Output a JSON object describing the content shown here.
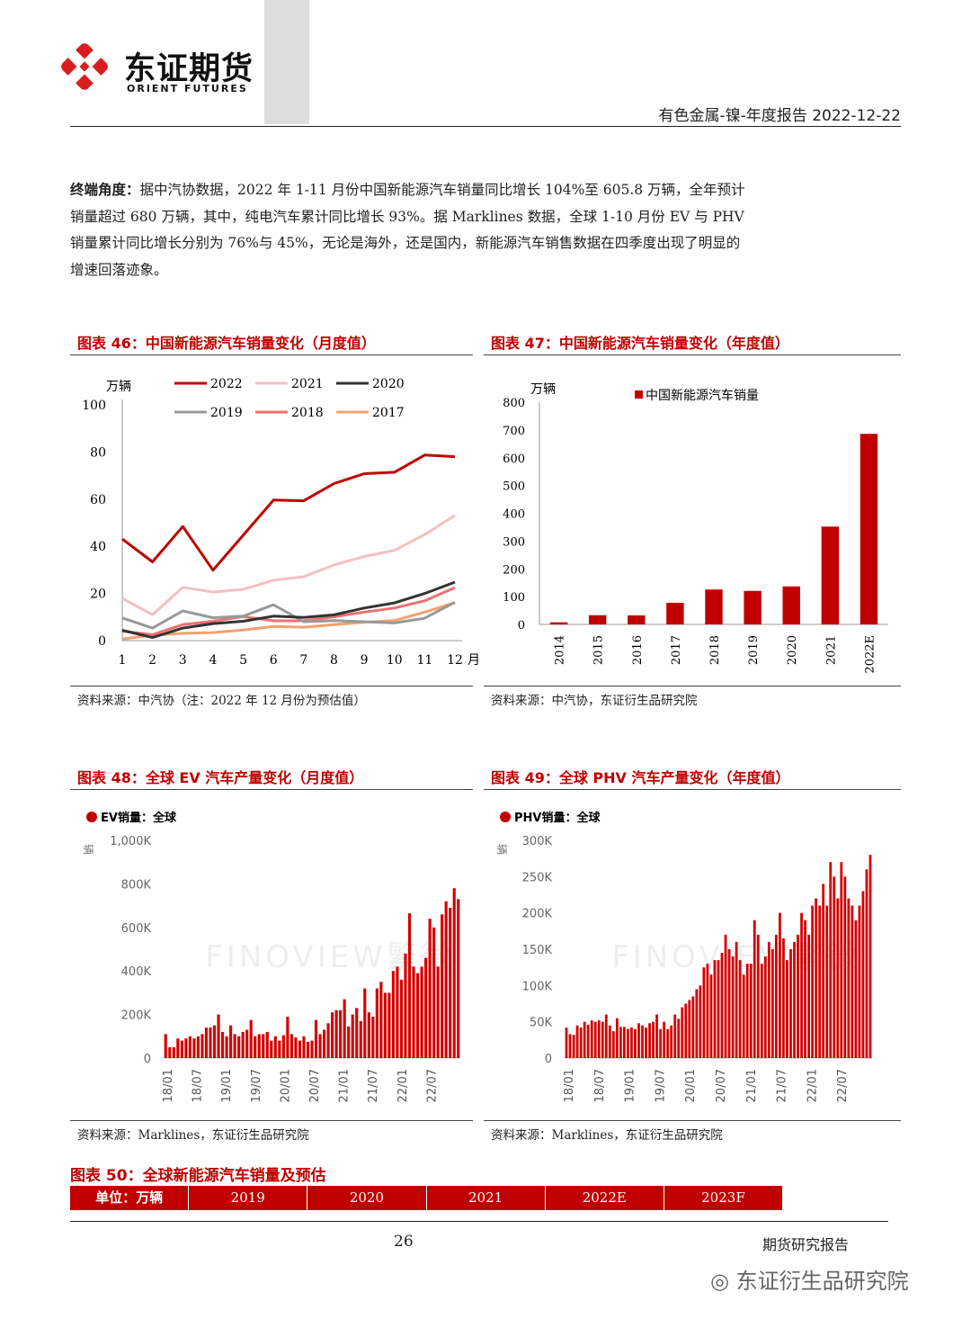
{
  "header": {
    "logo_cn": "东证期货",
    "logo_en": "ORIENT FUTURES",
    "report_title": "有色金属-镍-年度报告 2022-12-22"
  },
  "body": {
    "lead": "终端角度：",
    "text": "据中汽协数据，2022 年 1-11 月份中国新能源汽车销量同比增长 104%至 605.8 万辆，全年预计销量超过 680 万辆，其中，纯电汽车累计同比增长 93%。据 Marklines 数据，全球 1-10 月份 EV 与 PHV 销量累计同比增长分别为 76%与 45%，无论是海外，还是国内，新能源汽车销售数据在四季度出现了明显的增速回落迹象。"
  },
  "fig46": {
    "title": "图表 46：中国新能源汽车销量变化（月度值）",
    "source": "资料来源：中汽协（注：2022 年 12 月份为预估值）"
  },
  "fig47": {
    "title": "图表 47：中国新能源汽车销量变化（年度值）",
    "source": "资料来源：中汽协，东证衍生品研究院"
  },
  "fig48": {
    "title": "图表 48：全球 EV 汽车产量变化（月度值）",
    "source": "资料来源：Marklines，东证衍生品研究院"
  },
  "fig49": {
    "title": "图表 49：全球 PHV 汽车产量变化（年度值）",
    "source": "资料来源：Marklines，东证衍生品研究院"
  },
  "fig50": {
    "title": "图表 50：全球新能源汽车销量及预估",
    "headers": [
      "单位：万辆",
      "2019",
      "2020",
      "2021",
      "2022E",
      "2023F"
    ]
  },
  "footer": {
    "page": "26",
    "label": "期货研究报告",
    "wechat": "东证衍生品研究院"
  },
  "colors": {
    "accent": "#c00000",
    "gridline": "#ddd"
  },
  "chart_data": [
    {
      "type": "line",
      "ylabel": "万辆",
      "xlabel_suffix": "月",
      "ylim": [
        0,
        100
      ],
      "yticks": [
        0,
        20,
        40,
        60,
        80,
        100
      ],
      "x": [
        1,
        2,
        3,
        4,
        5,
        6,
        7,
        8,
        9,
        10,
        11,
        12
      ],
      "series": [
        {
          "name": "2022",
          "color": "#c00000",
          "values": [
            43.1,
            33.4,
            48.4,
            29.9,
            44.7,
            59.6,
            59.3,
            66.6,
            70.8,
            71.4,
            78.7,
            78.0
          ]
        },
        {
          "name": "2021",
          "color": "#f4c0c0",
          "values": [
            17.9,
            11.0,
            22.6,
            20.6,
            21.7,
            25.6,
            27.1,
            32.1,
            35.7,
            38.3,
            45.0,
            53.1
          ]
        },
        {
          "name": "2020",
          "color": "#333333",
          "values": [
            4.4,
            1.3,
            5.3,
            7.2,
            8.2,
            10.4,
            9.8,
            10.9,
            13.8,
            16.0,
            20.0,
            24.8
          ]
        },
        {
          "name": "2019",
          "color": "#999999",
          "values": [
            9.6,
            5.3,
            12.6,
            9.7,
            10.4,
            15.2,
            8.0,
            8.5,
            8.0,
            7.5,
            9.5,
            16.3
          ]
        },
        {
          "name": "2018",
          "color": "#f07070",
          "values": [
            4.0,
            2.5,
            6.8,
            8.2,
            10.2,
            8.4,
            8.4,
            10.1,
            12.1,
            13.8,
            16.9,
            22.5
          ]
        },
        {
          "name": "2017",
          "color": "#f4a070",
          "values": [
            0.7,
            2.3,
            3.1,
            3.4,
            4.5,
            6.0,
            5.7,
            6.8,
            7.8,
            8.5,
            12.1,
            16.1
          ]
        }
      ]
    },
    {
      "type": "bar",
      "ylabel": "万辆",
      "ylim": [
        0,
        800
      ],
      "yticks": [
        0,
        100,
        200,
        300,
        400,
        500,
        600,
        700,
        800
      ],
      "categories": [
        "2014",
        "2015",
        "2016",
        "2017",
        "2018",
        "2019",
        "2020",
        "2021",
        "2022E"
      ],
      "series": [
        {
          "name": "中国新能源汽车销量",
          "values": [
            7.5,
            33.1,
            32.5,
            77.7,
            125.6,
            120.6,
            136.7,
            352.1,
            686
          ]
        }
      ]
    },
    {
      "type": "bar",
      "legend": "EV销量：全球",
      "ylabel": "辆",
      "watermark": "FINOVIEW繁微",
      "ylim": [
        0,
        1000000
      ],
      "ytick_labels": [
        "0",
        "200K",
        "400K",
        "600K",
        "800K",
        "1,000K"
      ],
      "x_tick_labels": [
        "18/01",
        "18/07",
        "19/01",
        "19/07",
        "20/01",
        "20/07",
        "21/01",
        "21/07",
        "22/01",
        "22/07"
      ],
      "series": [
        {
          "name": "EV销量：全球",
          "values": [
            110000,
            50000,
            50000,
            90000,
            80000,
            90000,
            100000,
            90000,
            100000,
            110000,
            140000,
            140000,
            150000,
            200000,
            120000,
            100000,
            150000,
            110000,
            100000,
            120000,
            130000,
            175000,
            100000,
            110000,
            110000,
            120000,
            80000,
            100000,
            80000,
            105000,
            190000,
            110000,
            95000,
            80000,
            100000,
            75000,
            80000,
            175000,
            110000,
            130000,
            160000,
            210000,
            220000,
            220000,
            270000,
            145000,
            200000,
            230000,
            170000,
            320000,
            210000,
            190000,
            320000,
            350000,
            300000,
            300000,
            400000,
            420000,
            360000,
            480000,
            665000,
            420000,
            390000,
            420000,
            460000,
            640000,
            600000,
            420000,
            660000,
            720000,
            690000,
            780000,
            730000
          ]
        }
      ]
    },
    {
      "type": "bar",
      "legend": "PHV销量：全球",
      "ylabel": "辆",
      "watermark": "FINOVIEW繁微",
      "ylim": [
        0,
        300000
      ],
      "ytick_labels": [
        "0",
        "50K",
        "100K",
        "150K",
        "200K",
        "250K",
        "300K"
      ],
      "x_tick_labels": [
        "18/01",
        "18/07",
        "19/01",
        "19/07",
        "20/01",
        "20/07",
        "21/01",
        "21/07",
        "22/01",
        "22/07"
      ],
      "series": [
        {
          "name": "PHV销量：全球",
          "values": [
            42000,
            33000,
            32000,
            45000,
            42000,
            50000,
            46000,
            52000,
            50000,
            52000,
            50000,
            60000,
            45000,
            37000,
            55000,
            43000,
            43000,
            40000,
            42000,
            40000,
            48000,
            45000,
            42000,
            48000,
            50000,
            60000,
            40000,
            50000,
            40000,
            45000,
            60000,
            54000,
            70000,
            75000,
            80000,
            85000,
            95000,
            100000,
            125000,
            130000,
            115000,
            135000,
            135000,
            145000,
            170000,
            150000,
            140000,
            160000,
            135000,
            115000,
            130000,
            130000,
            190000,
            170000,
            130000,
            140000,
            160000,
            150000,
            170000,
            200000,
            165000,
            135000,
            150000,
            160000,
            170000,
            200000,
            190000,
            170000,
            210000,
            220000,
            210000,
            240000,
            210000,
            270000,
            250000,
            220000,
            270000,
            250000,
            220000,
            210000,
            190000,
            210000,
            230000,
            260000,
            280000
          ]
        }
      ]
    }
  ]
}
